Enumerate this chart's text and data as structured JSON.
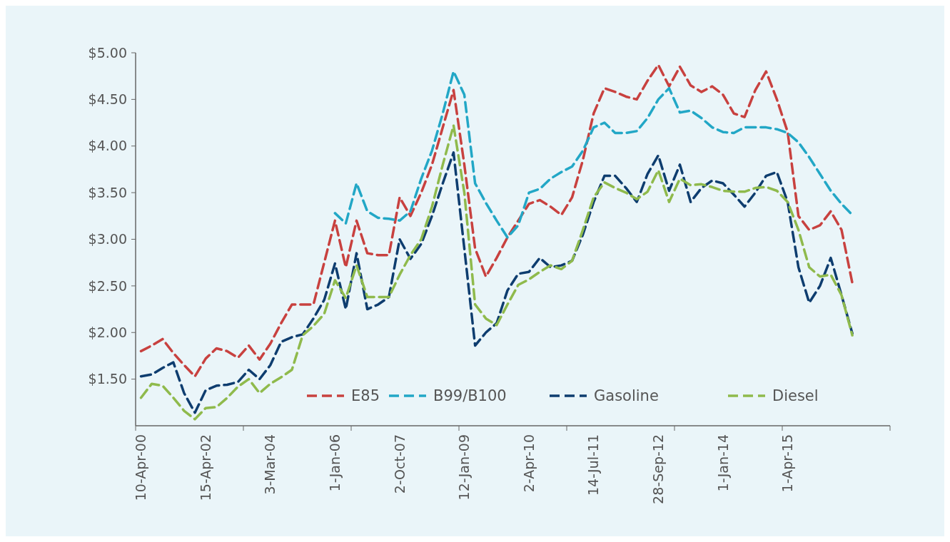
{
  "chart_data": {
    "type": "line",
    "legend": "bottom",
    "line_style": "dashed",
    "marker": "none",
    "grid": false,
    "ylim": [
      1,
      5
    ],
    "yticks": [
      {
        "value": 1.5,
        "label": "$1.50"
      },
      {
        "value": 2,
        "label": "$2.00"
      },
      {
        "value": 2.5,
        "label": "$2.50"
      },
      {
        "value": 3,
        "label": "$3.00"
      },
      {
        "value": 3.5,
        "label": "$3.50"
      },
      {
        "value": 4,
        "label": "$4.00"
      },
      {
        "value": 4.5,
        "label": "$4.50"
      },
      {
        "value": 5,
        "label": "$5.00"
      }
    ],
    "categories": [
      "10-Apr-00",
      null,
      null,
      null,
      null,
      null,
      "15-Apr-02",
      null,
      null,
      null,
      null,
      null,
      "3-Mar-04",
      null,
      null,
      null,
      null,
      null,
      "1-Jan-06",
      null,
      null,
      null,
      null,
      null,
      "2-Oct-07",
      null,
      null,
      null,
      null,
      null,
      "12-Jan-09",
      null,
      null,
      null,
      null,
      null,
      "2-Apr-10",
      null,
      null,
      null,
      null,
      null,
      "14-Jul-11",
      null,
      null,
      null,
      null,
      null,
      "28-Sep-12",
      null,
      null,
      null,
      null,
      null,
      "1-Jan-14",
      null,
      null,
      null,
      null,
      null,
      "1-Apr-15",
      null,
      null,
      null,
      null,
      null,
      null,
      null,
      null,
      null
    ],
    "series": [
      {
        "name": "E85",
        "color": "#c8413f",
        "values": [
          1.8,
          1.86,
          1.93,
          1.78,
          1.65,
          1.53,
          1.72,
          1.83,
          1.8,
          1.73,
          1.86,
          1.71,
          1.88,
          2.1,
          2.3,
          2.3,
          2.3,
          2.75,
          3.2,
          2.7,
          3.2,
          2.85,
          2.83,
          2.83,
          3.45,
          3.25,
          3.5,
          3.8,
          4.2,
          4.6,
          3.8,
          2.9,
          2.6,
          2.8,
          3.02,
          3.2,
          3.38,
          3.42,
          3.35,
          3.26,
          3.45,
          3.85,
          4.35,
          4.62,
          4.58,
          4.53,
          4.5,
          4.7,
          4.87,
          4.64,
          4.85,
          4.65,
          4.58,
          4.64,
          4.55,
          4.35,
          4.31,
          4.6,
          4.8,
          4.5,
          4.15,
          3.25,
          3.1,
          3.15,
          3.3,
          3.1,
          2.53,
          null,
          null,
          null
        ]
      },
      {
        "name": "B99/B100",
        "color": "#22a7c6",
        "values": [
          null,
          null,
          null,
          null,
          null,
          null,
          null,
          null,
          null,
          null,
          null,
          null,
          null,
          null,
          null,
          null,
          null,
          null,
          3.28,
          3.17,
          3.6,
          3.3,
          3.23,
          3.22,
          3.2,
          3.3,
          3.65,
          3.95,
          4.35,
          4.8,
          4.55,
          3.6,
          3.39,
          3.2,
          3.02,
          3.15,
          3.5,
          3.54,
          3.65,
          3.72,
          3.78,
          3.95,
          4.2,
          4.25,
          4.14,
          4.14,
          4.16,
          4.3,
          4.5,
          4.62,
          4.36,
          4.38,
          4.3,
          4.2,
          4.15,
          4.14,
          4.2,
          4.2,
          4.2,
          4.18,
          4.14,
          4.04,
          3.88,
          3.7,
          3.52,
          3.38,
          3.26,
          null,
          null,
          null
        ]
      },
      {
        "name": "Gasoline",
        "color": "#0e3d6f",
        "values": [
          1.53,
          1.55,
          1.62,
          1.68,
          1.35,
          1.14,
          1.38,
          1.43,
          1.44,
          1.47,
          1.6,
          1.5,
          1.65,
          1.9,
          1.95,
          1.98,
          2.15,
          2.35,
          2.74,
          2.25,
          2.85,
          2.25,
          2.3,
          2.38,
          3.0,
          2.79,
          2.95,
          3.25,
          3.6,
          3.93,
          2.9,
          1.86,
          2.0,
          2.1,
          2.45,
          2.63,
          2.65,
          2.8,
          2.7,
          2.72,
          2.77,
          3.05,
          3.4,
          3.68,
          3.68,
          3.55,
          3.4,
          3.7,
          3.9,
          3.52,
          3.8,
          3.4,
          3.55,
          3.63,
          3.6,
          3.48,
          3.35,
          3.5,
          3.68,
          3.72,
          3.4,
          2.7,
          2.32,
          2.5,
          2.8,
          2.4,
          1.99,
          null,
          null,
          null
        ]
      },
      {
        "name": "Diesel",
        "color": "#8fba4c",
        "values": [
          1.3,
          1.45,
          1.43,
          1.3,
          1.16,
          1.07,
          1.19,
          1.2,
          1.3,
          1.42,
          1.5,
          1.35,
          1.45,
          1.52,
          1.6,
          1.97,
          2.07,
          2.2,
          2.56,
          2.37,
          2.72,
          2.38,
          2.38,
          2.38,
          2.62,
          2.83,
          3.0,
          3.35,
          3.8,
          4.22,
          3.5,
          2.3,
          2.15,
          2.08,
          2.3,
          2.51,
          2.57,
          2.65,
          2.72,
          2.68,
          2.77,
          3.1,
          3.45,
          3.61,
          3.55,
          3.5,
          3.43,
          3.51,
          3.74,
          3.4,
          3.65,
          3.58,
          3.59,
          3.56,
          3.52,
          3.51,
          3.51,
          3.55,
          3.56,
          3.52,
          3.4,
          3.1,
          2.7,
          2.6,
          2.62,
          2.4,
          1.97,
          null,
          null,
          null
        ]
      }
    ]
  }
}
